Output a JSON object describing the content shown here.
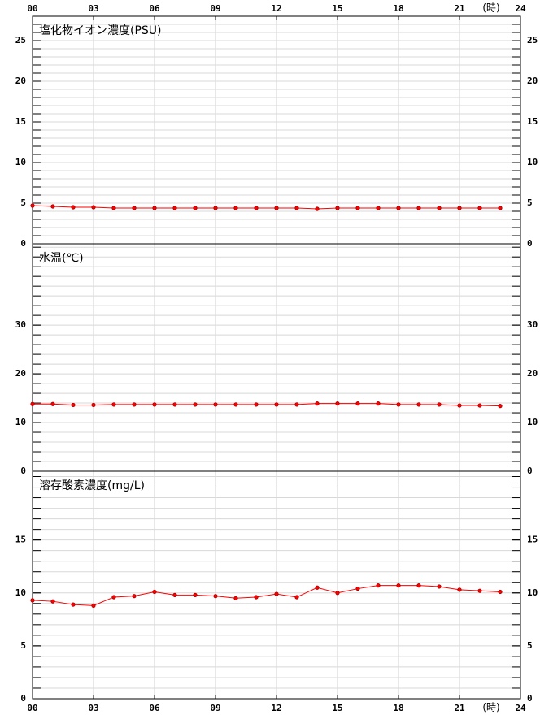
{
  "chart_data": [
    {
      "type": "line",
      "title": "塩化物イオン濃度(PSU)",
      "xlim": [
        0,
        24
      ],
      "xticks": [
        {
          "value": 0,
          "label": "00"
        },
        {
          "value": 3,
          "label": "03"
        },
        {
          "value": 6,
          "label": "06"
        },
        {
          "value": 9,
          "label": "09"
        },
        12,
        15,
        18,
        21,
        24
      ],
      "xlabel": "(時)",
      "xaxis_side": "top",
      "x": [
        0,
        1,
        2,
        3,
        4,
        5,
        6,
        7,
        8,
        9,
        10,
        11,
        12,
        13,
        14,
        15,
        16,
        17,
        18,
        19,
        20,
        21,
        22,
        23
      ],
      "series": [
        {
          "color": "#ff0000",
          "values": [
            4.7,
            4.6,
            4.5,
            4.5,
            4.4,
            4.4,
            4.4,
            4.4,
            4.4,
            4.4,
            4.4,
            4.4,
            4.4,
            4.4,
            4.3,
            4.4,
            4.4,
            4.4,
            4.4,
            4.4,
            4.4,
            4.4,
            4.4,
            4.4
          ]
        }
      ],
      "ylim": [
        0,
        28
      ],
      "yticks": [
        0,
        5,
        10,
        15,
        20,
        25
      ],
      "minor_step": 1,
      "grid": true
    },
    {
      "type": "line",
      "title": "水温(℃)",
      "xlim": [
        0,
        24
      ],
      "x": [
        0,
        1,
        2,
        3,
        4,
        5,
        6,
        7,
        8,
        9,
        10,
        11,
        12,
        13,
        14,
        15,
        16,
        17,
        18,
        19,
        20,
        21,
        22,
        23
      ],
      "series": [
        {
          "color": "#ff0000",
          "values": [
            13.8,
            13.8,
            13.6,
            13.6,
            13.7,
            13.7,
            13.7,
            13.7,
            13.7,
            13.7,
            13.7,
            13.7,
            13.7,
            13.7,
            13.9,
            13.9,
            13.9,
            13.9,
            13.7,
            13.7,
            13.7,
            13.5,
            13.5,
            13.4
          ]
        }
      ],
      "ylim": [
        0,
        46.7
      ],
      "yticks": [
        0,
        10,
        20,
        30
      ],
      "minor_step": 2,
      "grid": true
    },
    {
      "type": "line",
      "title": "溶存酸素濃度(mg/L)",
      "xlim": [
        0,
        24
      ],
      "xticks": [
        {
          "value": 0,
          "label": "00"
        },
        {
          "value": 3,
          "label": "03"
        },
        {
          "value": 6,
          "label": "06"
        },
        {
          "value": 9,
          "label": "09"
        },
        12,
        15,
        18,
        21,
        24
      ],
      "xlabel": "(時)",
      "xaxis_side": "bottom",
      "x": [
        0,
        1,
        2,
        3,
        4,
        5,
        6,
        7,
        8,
        9,
        10,
        11,
        12,
        13,
        14,
        15,
        16,
        17,
        18,
        19,
        20,
        21,
        22,
        23
      ],
      "series": [
        {
          "color": "#ff0000",
          "values": [
            9.3,
            9.2,
            8.9,
            8.8,
            9.6,
            9.7,
            10.1,
            9.8,
            9.8,
            9.7,
            9.5,
            9.6,
            9.9,
            9.6,
            10.5,
            10.0,
            10.4,
            10.7,
            10.7,
            10.7,
            10.6,
            10.3,
            10.2,
            10.1
          ]
        }
      ],
      "ylim": [
        0,
        21.5
      ],
      "yticks": [
        0,
        5,
        10,
        15
      ],
      "minor_step": 1,
      "grid": true
    }
  ]
}
